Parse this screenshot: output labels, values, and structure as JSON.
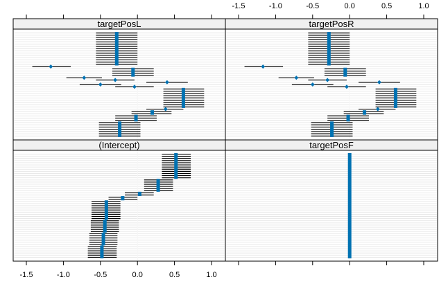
{
  "chart_data": {
    "type": "caterpillar",
    "xlim": [
      -1.5,
      1.0
    ],
    "x_ticks": [
      -1.5,
      -1.0,
      -0.5,
      0.0,
      0.5,
      1.0
    ],
    "x_tick_labels": [
      "-1.5",
      "-1.0",
      "-0.5",
      "0.0",
      "0.5",
      "1.0"
    ],
    "grid": true,
    "colors": {
      "point": "#0072b2",
      "interval": "#000000",
      "strip_bg": "#f0f0f0",
      "row_line": "#e6e6e6",
      "zero_line": "#f6f6f6",
      "frame": "#000000"
    },
    "panels": [
      {
        "key": "targetPosL",
        "label": "targetPosL",
        "points": [
          {
            "est": -0.28,
            "lo": -0.56,
            "hi": 0.0,
            "rows": 15
          },
          {
            "est": -1.17,
            "lo": -1.42,
            "hi": -0.9,
            "rows": 1
          },
          {
            "est": -0.06,
            "lo": -0.34,
            "hi": 0.22,
            "rows": 4
          },
          {
            "est": -0.72,
            "lo": -0.96,
            "hi": -0.48,
            "rows": 1
          },
          {
            "est": -0.3,
            "lo": -0.56,
            "hi": -0.04,
            "rows": 1
          },
          {
            "est": 0.4,
            "lo": 0.12,
            "hi": 0.68,
            "rows": 1
          },
          {
            "est": -0.5,
            "lo": -0.78,
            "hi": -0.22,
            "rows": 1
          },
          {
            "est": -0.04,
            "lo": -0.3,
            "hi": 0.22,
            "rows": 1
          },
          {
            "est": 0.62,
            "lo": 0.35,
            "hi": 0.9,
            "rows": 9
          },
          {
            "est": 0.38,
            "lo": 0.12,
            "hi": 0.62,
            "rows": 1
          },
          {
            "est": 0.2,
            "lo": -0.08,
            "hi": 0.46,
            "rows": 2
          },
          {
            "est": -0.02,
            "lo": -0.3,
            "hi": 0.26,
            "rows": 3
          },
          {
            "est": -0.24,
            "lo": -0.52,
            "hi": 0.04,
            "rows": 7
          }
        ]
      },
      {
        "key": "targetPosR",
        "label": "targetPosR",
        "points": [
          {
            "est": -0.28,
            "lo": -0.56,
            "hi": 0.0,
            "rows": 15
          },
          {
            "est": -1.17,
            "lo": -1.42,
            "hi": -0.9,
            "rows": 1
          },
          {
            "est": -0.06,
            "lo": -0.34,
            "hi": 0.22,
            "rows": 4
          },
          {
            "est": -0.72,
            "lo": -0.96,
            "hi": -0.48,
            "rows": 1
          },
          {
            "est": -0.3,
            "lo": -0.56,
            "hi": -0.04,
            "rows": 1
          },
          {
            "est": 0.4,
            "lo": 0.12,
            "hi": 0.68,
            "rows": 1
          },
          {
            "est": -0.5,
            "lo": -0.78,
            "hi": -0.22,
            "rows": 1
          },
          {
            "est": -0.04,
            "lo": -0.3,
            "hi": 0.22,
            "rows": 1
          },
          {
            "est": 0.62,
            "lo": 0.35,
            "hi": 0.9,
            "rows": 9
          },
          {
            "est": 0.38,
            "lo": 0.12,
            "hi": 0.62,
            "rows": 1
          },
          {
            "est": 0.2,
            "lo": -0.08,
            "hi": 0.46,
            "rows": 2
          },
          {
            "est": -0.02,
            "lo": -0.3,
            "hi": 0.26,
            "rows": 3
          },
          {
            "est": -0.24,
            "lo": -0.52,
            "hi": 0.04,
            "rows": 7
          }
        ]
      },
      {
        "key": "Intercept",
        "label": "(Intercept)",
        "points": [
          {
            "est": 0.52,
            "lo": 0.33,
            "hi": 0.72,
            "rows": 12
          },
          {
            "est": 0.28,
            "lo": 0.09,
            "hi": 0.48,
            "rows": 6
          },
          {
            "est": 0.03,
            "lo": -0.17,
            "hi": 0.22,
            "rows": 2
          },
          {
            "est": -0.2,
            "lo": -0.39,
            "hi": 0.0,
            "rows": 2
          },
          {
            "est": -0.42,
            "lo": -0.62,
            "hi": -0.23,
            "rows": 9
          },
          {
            "est": -0.44,
            "lo": -0.63,
            "hi": -0.25,
            "rows": 6
          },
          {
            "est": -0.46,
            "lo": -0.65,
            "hi": -0.27,
            "rows": 6
          },
          {
            "est": -0.48,
            "lo": -0.67,
            "hi": -0.28,
            "rows": 6
          }
        ]
      },
      {
        "key": "targetPosF",
        "label": "targetPosF",
        "points": [
          {
            "est": 0.0,
            "lo": -0.02,
            "hi": 0.02,
            "rows": 49
          }
        ]
      }
    ]
  }
}
